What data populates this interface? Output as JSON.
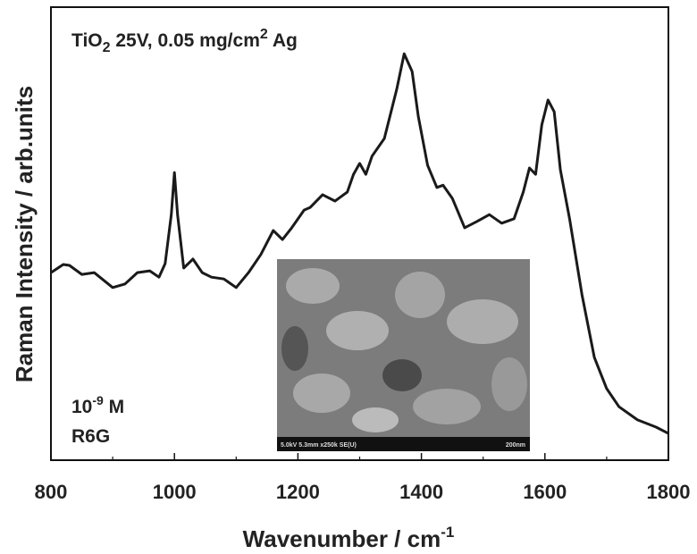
{
  "chart_data": {
    "type": "line",
    "annotation_parts": [
      "TiO",
      "2",
      " 25V, 0.05 mg/cm",
      "2",
      " Ag"
    ],
    "concentration_parts": [
      "10",
      "-9",
      " M"
    ],
    "analyte": "R6G",
    "xlabel_parts": [
      "Wavenumber / cm",
      "-1"
    ],
    "ylabel": "Raman Intensity / arb.units",
    "inset_caption": "5.0kV 5.3mm x250k SE(U)",
    "inset_scale": "200nm",
    "x": [
      800,
      820,
      830,
      850,
      870,
      900,
      920,
      940,
      960,
      975,
      985,
      995,
      1000,
      1005,
      1015,
      1030,
      1045,
      1060,
      1080,
      1100,
      1120,
      1140,
      1160,
      1175,
      1190,
      1210,
      1220,
      1240,
      1260,
      1280,
      1290,
      1300,
      1310,
      1320,
      1340,
      1360,
      1372,
      1385,
      1395,
      1410,
      1425,
      1435,
      1450,
      1470,
      1490,
      1510,
      1530,
      1550,
      1565,
      1575,
      1585,
      1595,
      1605,
      1615,
      1625,
      1640,
      1660,
      1680,
      1700,
      1720,
      1750,
      1780,
      1800
    ],
    "series": [
      {
        "color": "#1a1a1a",
        "values": [
          41.4,
          43.2,
          43.0,
          41.0,
          41.4,
          38.1,
          38.9,
          41.4,
          41.8,
          40.4,
          43.4,
          54.2,
          63.5,
          54.2,
          42.4,
          44.4,
          41.4,
          40.4,
          40.0,
          38.1,
          41.4,
          45.4,
          50.7,
          48.7,
          51.3,
          55.2,
          55.8,
          58.6,
          57.2,
          59.2,
          63.1,
          65.5,
          63.1,
          67.1,
          71.0,
          81.9,
          89.7,
          85.8,
          75.9,
          65.1,
          60.2,
          60.7,
          57.8,
          51.3,
          52.7,
          54.2,
          52.3,
          53.3,
          59.2,
          64.5,
          63.1,
          74.0,
          79.5,
          76.9,
          64.1,
          53.3,
          36.5,
          22.7,
          15.8,
          11.8,
          8.9,
          7.3,
          5.9
        ]
      }
    ],
    "xlim": [
      800,
      1800
    ],
    "xticks": [
      800,
      1000,
      1200,
      1400,
      1600,
      1800
    ],
    "xticks_minor": [
      900,
      1100,
      1300,
      1500,
      1700
    ],
    "ylim": [
      0,
      100
    ]
  }
}
